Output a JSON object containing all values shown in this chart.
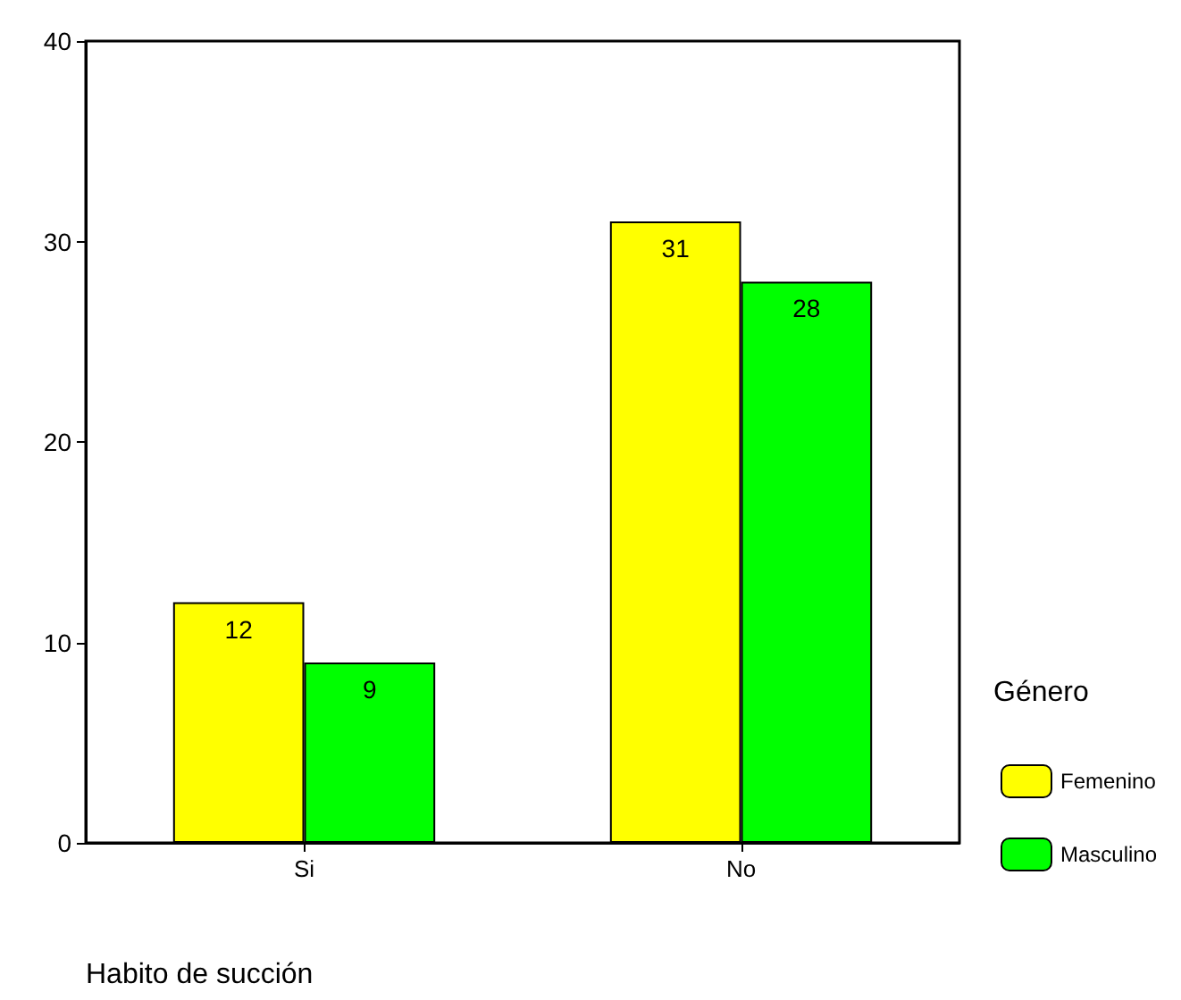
{
  "chart_data": {
    "type": "bar",
    "xlabel": "Habito de succión",
    "legend_title": "Género",
    "categories": [
      "Si",
      "No"
    ],
    "series": [
      {
        "name": "Femenino",
        "color": "#ffff00",
        "values": [
          12,
          31
        ]
      },
      {
        "name": "Masculino",
        "color": "#00ff00",
        "values": [
          9,
          28
        ]
      }
    ],
    "ylim": [
      0,
      40
    ],
    "yticks": [
      0,
      10,
      20,
      30,
      40
    ],
    "grid": false,
    "legend": "right",
    "data_labels": true
  }
}
